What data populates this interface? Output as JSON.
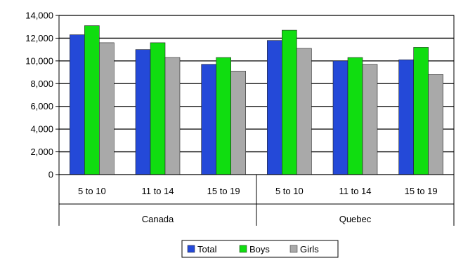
{
  "chart_data": {
    "type": "bar",
    "groups": [
      "Canada",
      "Quebec"
    ],
    "categories": [
      "5 to 10",
      "11 to 14",
      "15 to 19",
      "5 to 10",
      "11 to 14",
      "15 to 19"
    ],
    "series": [
      {
        "name": "Total",
        "color": "#2449D8",
        "values": [
          12300,
          11000,
          9700,
          11800,
          10000,
          10100
        ]
      },
      {
        "name": "Boys",
        "color": "#10DD10",
        "values": [
          13100,
          11600,
          10300,
          12700,
          10300,
          11200
        ]
      },
      {
        "name": "Girls",
        "color": "#A9A9A9",
        "values": [
          11600,
          10300,
          9100,
          11100,
          9700,
          8800
        ]
      }
    ],
    "y_ticks": [
      "0",
      "2,000",
      "4,000",
      "6,000",
      "8,000",
      "10,000",
      "12,000",
      "14,000"
    ],
    "ylim": [
      0,
      14000
    ],
    "grid": true,
    "legend": "bottom"
  }
}
